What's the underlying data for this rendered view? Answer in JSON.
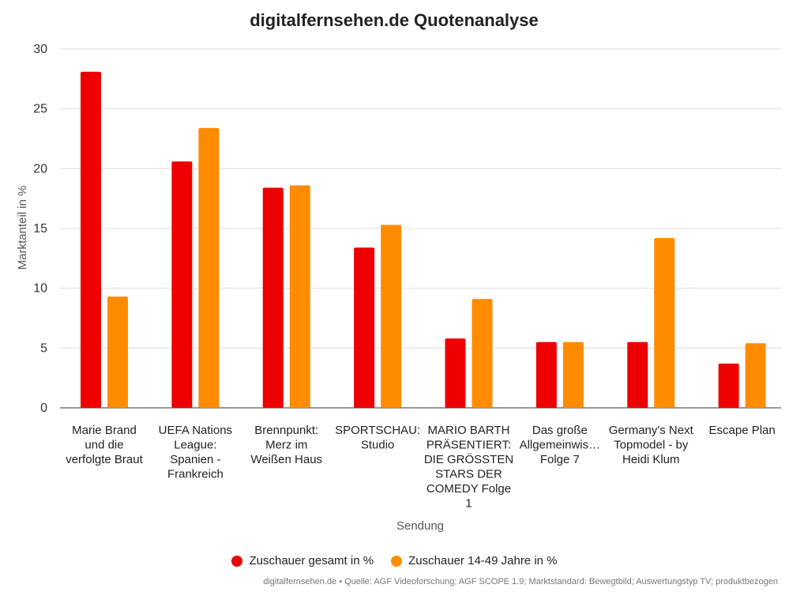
{
  "chart_data": {
    "type": "bar",
    "title": "digitalfernsehen.de Quotenanalyse",
    "xlabel": "Sendung",
    "ylabel": "Marktanteil in %",
    "ylim": [
      0,
      30
    ],
    "yticks": [
      0,
      5,
      10,
      15,
      20,
      25,
      30
    ],
    "grid": true,
    "legend_position": "bottom",
    "categories": [
      [
        "Marie Brand",
        "und die",
        "verfolgte Braut"
      ],
      [
        "UEFA Nations",
        "League:",
        "Spanien -",
        "Frankreich"
      ],
      [
        "Brennpunkt:",
        "Merz im",
        "Weißen Haus"
      ],
      [
        "SPORTSCHAU:",
        "Studio"
      ],
      [
        "MARIO BARTH",
        "PRÄSENTIERT:",
        "DIE GRÖSSTEN",
        "STARS DER",
        "COMEDY Folge",
        "1"
      ],
      [
        "Das große",
        "Allgemeinwis…",
        "Folge 7"
      ],
      [
        "Germany's Next",
        "Topmodel - by",
        "Heidi Klum"
      ],
      [
        "Escape Plan"
      ]
    ],
    "series": [
      {
        "name": "Zuschauer gesamt in %",
        "color": "#ee0000",
        "values": [
          28.1,
          20.6,
          18.4,
          13.4,
          5.8,
          5.5,
          5.5,
          3.7
        ]
      },
      {
        "name": "Zuschauer 14-49 Jahre in %",
        "color": "#ff8c00",
        "values": [
          9.3,
          23.4,
          18.6,
          15.3,
          9.1,
          5.5,
          14.2,
          5.4
        ]
      }
    ]
  },
  "footer": {
    "source": "digitalfernsehen.de • Quelle: AGF Videoforschung; AGF SCOPE 1.9; Marktstandard: Bewegtbild; Auswertungstyp TV; produktbezogen"
  }
}
